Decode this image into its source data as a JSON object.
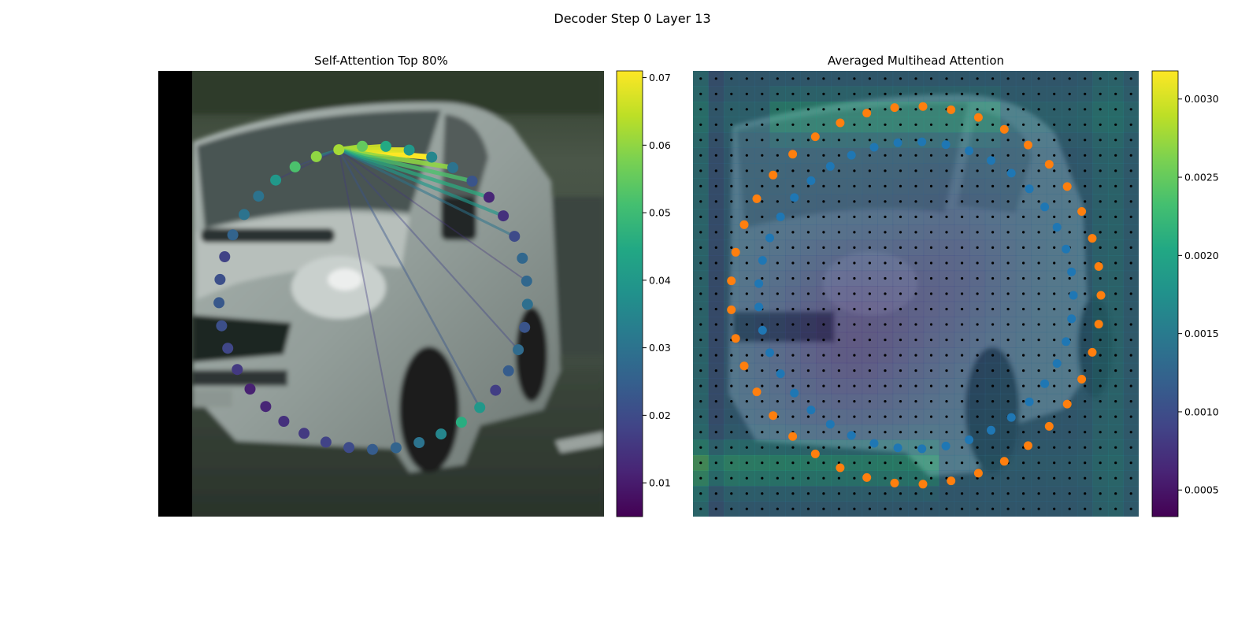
{
  "figure": {
    "suptitle": "Decoder Step 0 Layer 13"
  },
  "chart_data": [
    {
      "type": "scatter",
      "title": "Self-Attention Top 80%",
      "background": "blurred photo of a silver van (front-left three-quarter view) on a street",
      "colormap": "viridis",
      "colorbar": {
        "min": 0.005,
        "max": 0.071,
        "ticks": [
          "0.01",
          "0.02",
          "0.03",
          "0.04",
          "0.05",
          "0.06",
          "0.07"
        ],
        "tick_values": [
          0.01,
          0.02,
          0.03,
          0.04,
          0.05,
          0.06,
          0.07
        ]
      },
      "query_point_index": 4,
      "points_attention": [
        0.03,
        0.04,
        0.052,
        0.06,
        0.062,
        0.055,
        0.045,
        0.04,
        0.035,
        0.03,
        0.022,
        0.012,
        0.014,
        0.02,
        0.027,
        0.027,
        0.029,
        0.022,
        0.028,
        0.024,
        0.017,
        0.04,
        0.046,
        0.035,
        0.03,
        0.026,
        0.024,
        0.02,
        0.018,
        0.016,
        0.014,
        0.012,
        0.011,
        0.016,
        0.019,
        0.021,
        0.023,
        0.021,
        0.018,
        0.026,
        0.03
      ],
      "attention_links": [
        0.071,
        0.068,
        0.066,
        0.062,
        0.06,
        0.052,
        0.046,
        0.04,
        0.036,
        0.03,
        0.022,
        0.02,
        0.018,
        0.016,
        0.016,
        0.015
      ]
    },
    {
      "type": "heatmap",
      "title": "Averaged Multihead Attention",
      "background": "same van photo overlaid with a translucent attention grid",
      "colormap": "viridis",
      "grid_size": 29,
      "colorbar": {
        "min": 0.00033,
        "max": 0.00318,
        "ticks": [
          "0.0005",
          "0.0010",
          "0.0015",
          "0.0020",
          "0.0025",
          "0.0030"
        ],
        "tick_values": [
          0.0005,
          0.001,
          0.0015,
          0.002,
          0.0025,
          0.003
        ]
      },
      "series_colors": {
        "inner_points": "#1f77b4",
        "outer_points": "#ff7f0e",
        "sample_grid": "#000000"
      }
    }
  ]
}
